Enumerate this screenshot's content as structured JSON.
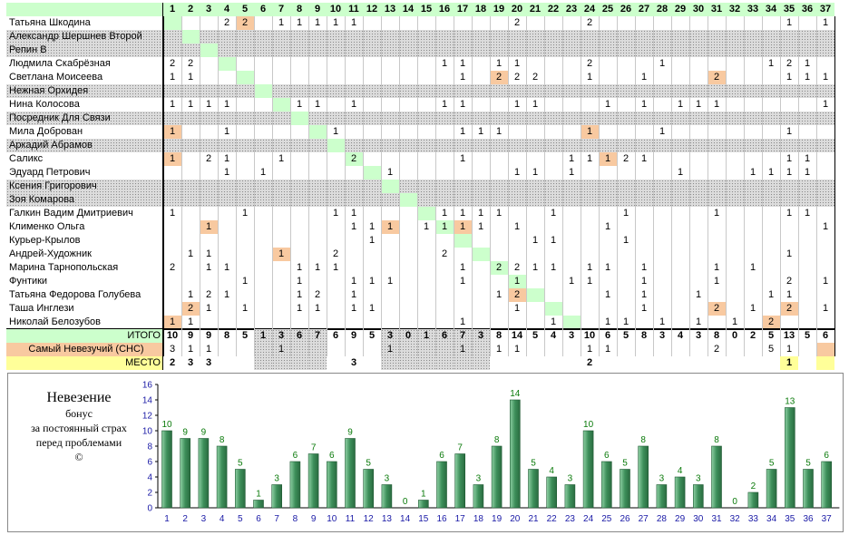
{
  "columns": [
    "1",
    "2",
    "3",
    "4",
    "5",
    "6",
    "7",
    "8",
    "9",
    "10",
    "11",
    "12",
    "13",
    "14",
    "15",
    "16",
    "17",
    "18",
    "19",
    "20",
    "21",
    "22",
    "23",
    "24",
    "25",
    "26",
    "27",
    "28",
    "29",
    "30",
    "31",
    "32",
    "33",
    "34",
    "35",
    "36",
    "37"
  ],
  "rows": [
    {
      "name": "Татьяна Шкодина",
      "cells": {
        "4": "2",
        "5": "2",
        "7": "1",
        "8": "1",
        "9": "1",
        "10": "1",
        "11": "1",
        "20": "2",
        "24": "2",
        "35": "1",
        "37": "1"
      },
      "orange": [
        5
      ],
      "hatched": false
    },
    {
      "name": "Александр Шершнев Второй",
      "cells": {},
      "orange": [],
      "hatched": true
    },
    {
      "name": "Репин В",
      "cells": {},
      "orange": [],
      "hatched": true
    },
    {
      "name": "Людмила Скабрёзная",
      "cells": {
        "1": "2",
        "2": "2",
        "16": "1",
        "17": "1",
        "19": "1",
        "20": "1",
        "24": "2",
        "28": "1",
        "34": "1",
        "35": "2",
        "36": "1"
      },
      "orange": [],
      "hatched": false
    },
    {
      "name": "Светлана Моисеева",
      "cells": {
        "1": "1",
        "2": "1",
        "17": "1",
        "19": "2",
        "20": "2",
        "21": "2",
        "24": "1",
        "27": "1",
        "31": "2",
        "35": "1",
        "36": "1",
        "37": "1"
      },
      "orange": [
        19,
        31
      ],
      "hatched": false
    },
    {
      "name": "Нежная Орхидея",
      "cells": {},
      "orange": [],
      "hatched": true
    },
    {
      "name": "Нина Колосова",
      "cells": {
        "1": "1",
        "2": "1",
        "3": "1",
        "4": "1",
        "8": "1",
        "9": "1",
        "11": "1",
        "16": "1",
        "17": "1",
        "20": "1",
        "21": "1",
        "25": "1",
        "27": "1",
        "29": "1",
        "30": "1",
        "31": "1",
        "37": "1"
      },
      "orange": [],
      "hatched": false
    },
    {
      "name": "Посредник Для Связи",
      "cells": {},
      "orange": [],
      "hatched": true
    },
    {
      "name": "Мила Доброван",
      "cells": {
        "1": "1",
        "4": "1",
        "10": "1",
        "17": "1",
        "18": "1",
        "19": "1",
        "24": "1",
        "28": "1",
        "35": "1"
      },
      "orange": [
        1,
        24
      ],
      "hatched": false
    },
    {
      "name": "Аркадий Абрамов",
      "cells": {},
      "orange": [],
      "hatched": true
    },
    {
      "name": "Саликс",
      "cells": {
        "1": "1",
        "3": "2",
        "4": "1",
        "7": "1",
        "11": "2",
        "17": "1",
        "23": "1",
        "24": "1",
        "25": "1",
        "26": "2",
        "27": "1",
        "35": "1",
        "36": "1"
      },
      "orange": [
        1,
        25
      ],
      "hatched": false
    },
    {
      "name": "Эдуард Петрович",
      "cells": {
        "4": "1",
        "6": "1",
        "13": "1",
        "20": "1",
        "21": "1",
        "23": "1",
        "29": "1",
        "33": "1",
        "34": "1",
        "35": "1",
        "36": "1"
      },
      "orange": [],
      "hatched": false
    },
    {
      "name": "Ксения Григорович",
      "cells": {},
      "orange": [],
      "hatched": true
    },
    {
      "name": "Зоя Комарова",
      "cells": {},
      "orange": [],
      "hatched": true
    },
    {
      "name": "Галкин Вадим Дмитриевич",
      "cells": {
        "1": "1",
        "5": "1",
        "10": "1",
        "11": "1",
        "16": "1",
        "17": "1",
        "18": "1",
        "19": "1",
        "22": "1",
        "26": "1",
        "31": "1",
        "35": "1",
        "36": "1"
      },
      "orange": [],
      "hatched": false
    },
    {
      "name": "Клименко Ольга",
      "cells": {
        "3": "1",
        "11": "1",
        "12": "1",
        "13": "1",
        "15": "1",
        "16": "1",
        "17": "1",
        "18": "1",
        "20": "1",
        "25": "1",
        "37": "1"
      },
      "orange": [
        3,
        13,
        17
      ],
      "hatched": false
    },
    {
      "name": "Курьер-Крылов",
      "cells": {
        "12": "1",
        "21": "1",
        "22": "1",
        "26": "1"
      },
      "orange": [],
      "hatched": false
    },
    {
      "name": "Андрей-Художник",
      "cells": {
        "2": "1",
        "3": "1",
        "7": "1",
        "10": "2",
        "16": "2",
        "35": "1"
      },
      "orange": [
        7
      ],
      "hatched": false
    },
    {
      "name": "Марина Тарнопольская",
      "cells": {
        "1": "2",
        "3": "1",
        "4": "1",
        "8": "1",
        "9": "1",
        "10": "1",
        "17": "1",
        "19": "2",
        "20": "2",
        "21": "1",
        "22": "1",
        "24": "1",
        "25": "1",
        "27": "1",
        "31": "1",
        "33": "1"
      },
      "orange": [],
      "hatched": false
    },
    {
      "name": "Фунтики",
      "cells": {
        "5": "1",
        "8": "1",
        "11": "1",
        "12": "1",
        "13": "1",
        "17": "1",
        "20": "1",
        "23": "1",
        "24": "1",
        "27": "1",
        "31": "1",
        "35": "2",
        "37": "1"
      },
      "orange": [],
      "hatched": false
    },
    {
      "name": "Татьяна Федорова Голубева",
      "cells": {
        "2": "1",
        "3": "2",
        "4": "1",
        "8": "1",
        "9": "2",
        "11": "1",
        "19": "1",
        "20": "2",
        "25": "1",
        "27": "1",
        "30": "1",
        "34": "1",
        "35": "1"
      },
      "orange": [
        20
      ],
      "hatched": false
    },
    {
      "name": "Таша Инглези",
      "cells": {
        "2": "2",
        "3": "1",
        "5": "1",
        "8": "1",
        "9": "1",
        "11": "1",
        "12": "1",
        "20": "1",
        "27": "1",
        "31": "2",
        "33": "1",
        "35": "2",
        "37": "1"
      },
      "orange": [
        2,
        31,
        35
      ],
      "hatched": false
    },
    {
      "name": "Николай Белозубов",
      "cells": {
        "1": "1",
        "2": "1",
        "17": "1",
        "22": "1",
        "25": "1",
        "26": "1",
        "28": "1",
        "30": "1",
        "32": "1",
        "34": "2"
      },
      "orange": [
        1,
        34
      ],
      "hatched": false
    }
  ],
  "totals": {
    "label": "ИТОГО",
    "values": [
      "10",
      "9",
      "9",
      "8",
      "5",
      "1",
      "3",
      "6",
      "7",
      "6",
      "9",
      "5",
      "3",
      "0",
      "1",
      "6",
      "7",
      "3",
      "8",
      "14",
      "5",
      "4",
      "3",
      "10",
      "6",
      "5",
      "8",
      "3",
      "4",
      "3",
      "8",
      "0",
      "2",
      "5",
      "13",
      "5",
      "6"
    ]
  },
  "sns": {
    "label": "Самый Невезучий (СНС)",
    "cells": {
      "1": "3",
      "2": "1",
      "3": "1",
      "7": "1",
      "13": "1",
      "17": "1",
      "19": "1",
      "20": "1",
      "24": "1",
      "25": "1",
      "31": "2",
      "34": "5",
      "35": "1"
    }
  },
  "place": {
    "label": "МЕСТО",
    "cells": {
      "1": "2",
      "2": "3",
      "3": "3",
      "11": "3",
      "24": "2",
      "35": "1"
    }
  },
  "note": {
    "title": "Невезение",
    "line1": "бонус",
    "line2": "за постоянный страх",
    "line3": "перед проблемами",
    "copyright": "©"
  },
  "colors": {
    "bar": "#3d8f5a",
    "bar_light": "#8fd0a4",
    "axis_label": "#1a1aa6",
    "value_label": "#0a7a0a",
    "green_cell": "#ccffcc",
    "orange_cell": "#f8c9a0",
    "yellow_cell": "#ffff99"
  },
  "chart_data": {
    "type": "bar",
    "categories": [
      "1",
      "2",
      "3",
      "4",
      "5",
      "6",
      "7",
      "8",
      "9",
      "10",
      "11",
      "12",
      "13",
      "14",
      "15",
      "16",
      "17",
      "18",
      "19",
      "20",
      "21",
      "22",
      "23",
      "24",
      "25",
      "26",
      "27",
      "28",
      "29",
      "30",
      "31",
      "32",
      "33",
      "34",
      "35",
      "36",
      "37"
    ],
    "values": [
      10,
      9,
      9,
      8,
      5,
      1,
      3,
      6,
      7,
      6,
      9,
      5,
      3,
      0,
      1,
      6,
      7,
      3,
      8,
      14,
      5,
      4,
      3,
      10,
      6,
      5,
      8,
      3,
      4,
      3,
      8,
      0,
      2,
      5,
      13,
      5,
      6
    ],
    "title": "",
    "xlabel": "",
    "ylabel": "",
    "ylim": [
      0,
      16
    ],
    "yticks": [
      "0",
      "2",
      "4",
      "6",
      "8",
      "10",
      "12",
      "14",
      "16"
    ],
    "grid": false
  }
}
